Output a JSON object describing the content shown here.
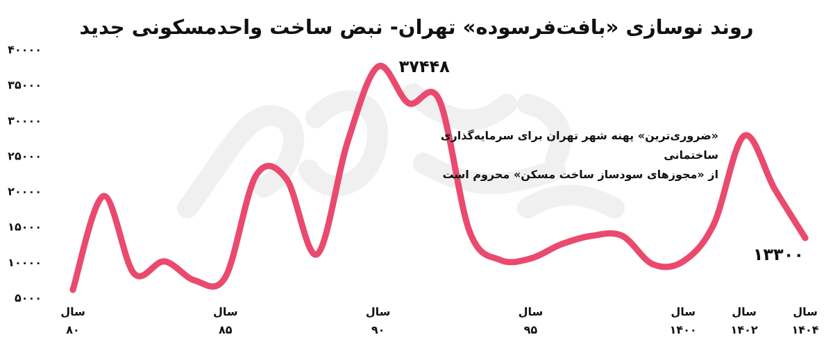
{
  "chart_data": {
    "type": "line",
    "title": "روند نوسازی «بافت‌فرسوده» تهران- نبض ساخت واحدمسکونی جدید",
    "xlabel": "",
    "ylabel": "",
    "ylim": [
      5000,
      40000
    ],
    "y_ticks": [
      "۴۰۰۰۰",
      "۳۵۰۰۰",
      "۳۰۰۰۰",
      "۲۵۰۰۰",
      "۲۰۰۰۰",
      "۱۵۰۰۰",
      "۱۰۰۰۰",
      "۵۰۰۰"
    ],
    "x_tick_labels": [
      {
        "x": 80,
        "line1": "سال",
        "line2": "۸۰"
      },
      {
        "x": 85,
        "line1": "سال",
        "line2": "۸۵"
      },
      {
        "x": 90,
        "line1": "سال",
        "line2": "۹۰"
      },
      {
        "x": 95,
        "line1": "سال",
        "line2": "۹۵"
      },
      {
        "x": 100,
        "line1": "سال",
        "line2": "۱۴۰۰"
      },
      {
        "x": 102,
        "line1": "سال",
        "line2": "۱۴۰۲"
      },
      {
        "x": 104,
        "line1": "سال",
        "line2": "۱۴۰۴"
      }
    ],
    "x": [
      80,
      81,
      82,
      83,
      84,
      85,
      86,
      87,
      88,
      89,
      90,
      91,
      92,
      93,
      94,
      95,
      96,
      97,
      98,
      99,
      100,
      101,
      102,
      103,
      104
    ],
    "values": [
      6000,
      19200,
      8300,
      10000,
      7300,
      7800,
      22100,
      21600,
      11000,
      26800,
      37448,
      32300,
      32800,
      14200,
      10200,
      10400,
      12400,
      13600,
      13600,
      9600,
      10000,
      15200,
      27700,
      20200,
      13300
    ],
    "data_labels": [
      {
        "index": 10,
        "text": "۳۷۴۴۸"
      },
      {
        "index": 24,
        "text": "۱۳۳۰۰"
      }
    ],
    "annotation_lines": [
      "«ضروری‌ترین» پهنه شهر تهران برای سرمایه‌گذاری",
      "ساختمانی",
      "از «مجوزهای سودساز ساخت مسکن» محروم است"
    ],
    "line_color": "#e94a6e",
    "text_color": "#111111",
    "watermark_color": "#f0f0f0",
    "grid": false,
    "legend": "none"
  }
}
